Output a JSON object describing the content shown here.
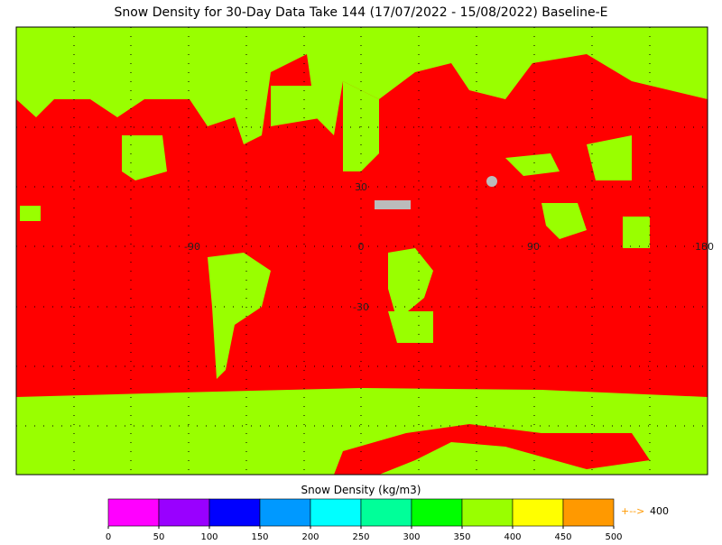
{
  "title": "Snow Density for 30-Day Data Take 144 (17/07/2022 - 15/08/2022) Baseline-E",
  "map": {
    "lat_labels": [
      30,
      -30
    ],
    "lon_labels": [
      -90,
      0,
      90,
      180
    ]
  },
  "colorbar": {
    "title": "Snow Density (kg/m3)",
    "ticks": [
      0,
      50,
      100,
      150,
      200,
      250,
      300,
      350,
      400,
      450,
      500
    ],
    "colors": [
      "#ff00ff",
      "#9900ff",
      "#0000ff",
      "#0099ff",
      "#00ffff",
      "#00ff99",
      "#00ff00",
      "#99ff00",
      "#ffff00",
      "#ff9900"
    ],
    "overflow_label": "+-->",
    "overflow_value": 400
  }
}
